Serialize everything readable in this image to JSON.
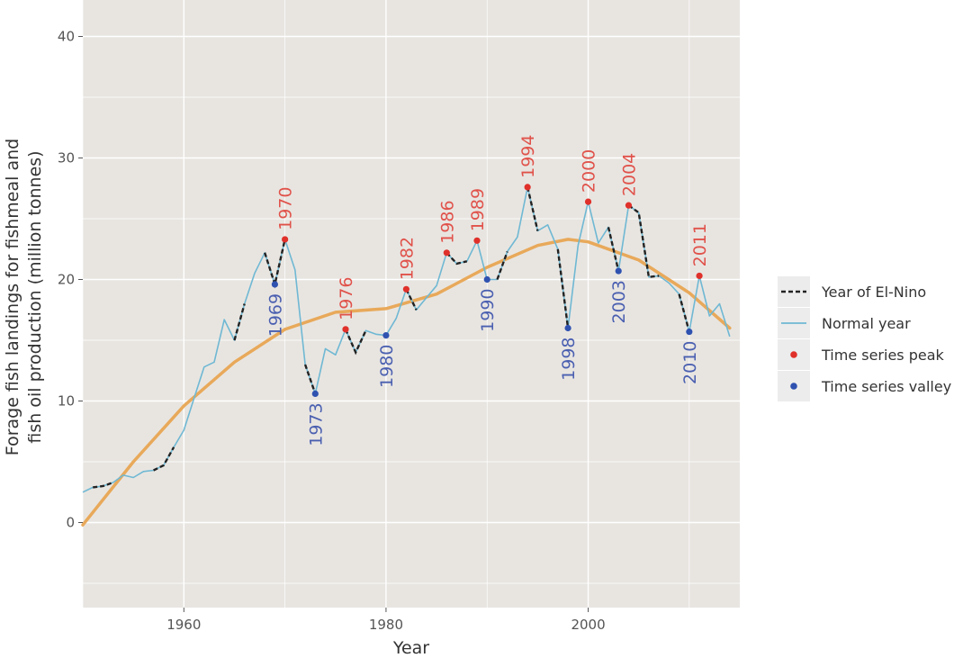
{
  "chart_data": {
    "type": "line",
    "xlabel": "Year",
    "ylabel_line1": "Forage fish landings for fishmeal and",
    "ylabel_line2": "fish oil production (million tonnes)",
    "xlim": [
      1950,
      2015
    ],
    "ylim": [
      -7,
      43
    ],
    "x_ticks": [
      1960,
      1980,
      2000
    ],
    "y_ticks": [
      0,
      10,
      20,
      30,
      40
    ],
    "grid": true,
    "legend_position": "right",
    "colors": {
      "panel": "#e8e5e1",
      "grid": "#ffffff",
      "normal": "#6fb8d3",
      "el_nino": "#222222",
      "trend": "#e8a95a",
      "peak": "#e0302a",
      "valley": "#2f52b0",
      "peak_label": "#e0524a",
      "valley_label": "#4a5fb0"
    },
    "series": [
      {
        "name": "Normal year",
        "values": [
          [
            1950,
            2.5
          ],
          [
            1951,
            2.9
          ],
          [
            1952,
            3.0
          ],
          [
            1953,
            3.3
          ],
          [
            1954,
            3.9
          ],
          [
            1955,
            3.7
          ],
          [
            1956,
            4.2
          ],
          [
            1957,
            4.3
          ],
          [
            1958,
            4.7
          ],
          [
            1959,
            6.2
          ],
          [
            1960,
            7.6
          ],
          [
            1961,
            10.2
          ],
          [
            1962,
            12.8
          ],
          [
            1963,
            13.2
          ],
          [
            1964,
            16.7
          ],
          [
            1965,
            15.0
          ],
          [
            1966,
            18.0
          ],
          [
            1967,
            20.5
          ],
          [
            1968,
            22.2
          ],
          [
            1969,
            19.6
          ],
          [
            1970,
            23.3
          ],
          [
            1971,
            20.8
          ],
          [
            1972,
            13.0
          ],
          [
            1973,
            10.6
          ],
          [
            1974,
            14.3
          ],
          [
            1975,
            13.8
          ],
          [
            1976,
            15.9
          ],
          [
            1977,
            14.0
          ],
          [
            1978,
            15.8
          ],
          [
            1979,
            15.5
          ],
          [
            1980,
            15.4
          ],
          [
            1981,
            16.8
          ],
          [
            1982,
            19.2
          ],
          [
            1983,
            17.5
          ],
          [
            1984,
            18.5
          ],
          [
            1985,
            19.5
          ],
          [
            1986,
            22.2
          ],
          [
            1987,
            21.3
          ],
          [
            1988,
            21.5
          ],
          [
            1989,
            23.2
          ],
          [
            1990,
            20.0
          ],
          [
            1991,
            20.0
          ],
          [
            1992,
            22.3
          ],
          [
            1993,
            23.5
          ],
          [
            1994,
            27.6
          ],
          [
            1995,
            24.0
          ],
          [
            1996,
            24.5
          ],
          [
            1997,
            22.5
          ],
          [
            1998,
            16.0
          ],
          [
            1999,
            22.8
          ],
          [
            2000,
            26.4
          ],
          [
            2001,
            23.0
          ],
          [
            2002,
            24.3
          ],
          [
            2003,
            20.7
          ],
          [
            2004,
            26.1
          ],
          [
            2005,
            25.5
          ],
          [
            2006,
            20.2
          ],
          [
            2007,
            20.3
          ],
          [
            2008,
            19.7
          ],
          [
            2009,
            18.8
          ],
          [
            2010,
            15.7
          ],
          [
            2011,
            20.3
          ],
          [
            2012,
            17.0
          ],
          [
            2013,
            18.0
          ],
          [
            2014,
            15.3
          ]
        ]
      },
      {
        "name": "Year of El-Nino",
        "segments": [
          [
            [
              1951,
              2.9
            ],
            [
              1952,
              3.0
            ],
            [
              1953,
              3.3
            ]
          ],
          [
            [
              1957,
              4.3
            ],
            [
              1958,
              4.7
            ],
            [
              1959,
              6.2
            ]
          ],
          [
            [
              1965,
              15.0
            ],
            [
              1966,
              18.0
            ]
          ],
          [
            [
              1968,
              22.2
            ],
            [
              1969,
              19.6
            ],
            [
              1970,
              23.3
            ]
          ],
          [
            [
              1972,
              13.0
            ],
            [
              1973,
              10.6
            ]
          ],
          [
            [
              1976,
              15.9
            ],
            [
              1977,
              14.0
            ],
            [
              1978,
              15.8
            ]
          ],
          [
            [
              1982,
              19.2
            ],
            [
              1983,
              17.5
            ]
          ],
          [
            [
              1986,
              22.2
            ],
            [
              1987,
              21.3
            ],
            [
              1988,
              21.5
            ]
          ],
          [
            [
              1991,
              20.0
            ],
            [
              1992,
              22.3
            ]
          ],
          [
            [
              1994,
              27.6
            ],
            [
              1995,
              24.0
            ]
          ],
          [
            [
              1997,
              22.5
            ],
            [
              1998,
              16.0
            ]
          ],
          [
            [
              2002,
              24.3
            ],
            [
              2003,
              20.7
            ]
          ],
          [
            [
              2004,
              26.1
            ],
            [
              2005,
              25.5
            ],
            [
              2006,
              20.2
            ],
            [
              2007,
              20.3
            ]
          ],
          [
            [
              2009,
              18.8
            ],
            [
              2010,
              15.7
            ]
          ]
        ]
      }
    ],
    "trend": {
      "values": [
        [
          1950,
          -0.2
        ],
        [
          1955,
          5.0
        ],
        [
          1960,
          9.6
        ],
        [
          1965,
          13.2
        ],
        [
          1970,
          15.9
        ],
        [
          1975,
          17.3
        ],
        [
          1980,
          17.6
        ],
        [
          1985,
          18.8
        ],
        [
          1990,
          21.0
        ],
        [
          1995,
          22.8
        ],
        [
          1998,
          23.3
        ],
        [
          2000,
          23.1
        ],
        [
          2005,
          21.6
        ],
        [
          2010,
          18.9
        ],
        [
          2014,
          16.0
        ]
      ]
    },
    "peaks": [
      {
        "x": 1970,
        "y": 23.3,
        "label": "1970"
      },
      {
        "x": 1976,
        "y": 15.9,
        "label": "1976"
      },
      {
        "x": 1982,
        "y": 19.2,
        "label": "1982"
      },
      {
        "x": 1986,
        "y": 22.2,
        "label": "1986"
      },
      {
        "x": 1989,
        "y": 23.2,
        "label": "1989"
      },
      {
        "x": 1994,
        "y": 27.6,
        "label": "1994"
      },
      {
        "x": 2000,
        "y": 26.4,
        "label": "2000"
      },
      {
        "x": 2004,
        "y": 26.1,
        "label": "2004"
      },
      {
        "x": 2011,
        "y": 20.3,
        "label": "2011"
      }
    ],
    "valleys": [
      {
        "x": 1969,
        "y": 19.6,
        "label": "1969"
      },
      {
        "x": 1973,
        "y": 10.6,
        "label": "1973"
      },
      {
        "x": 1980,
        "y": 15.4,
        "label": "1980"
      },
      {
        "x": 1990,
        "y": 20.0,
        "label": "1990"
      },
      {
        "x": 1998,
        "y": 16.0,
        "label": "1998"
      },
      {
        "x": 2003,
        "y": 20.7,
        "label": "2003"
      },
      {
        "x": 2010,
        "y": 15.7,
        "label": "2010"
      }
    ],
    "legend": [
      {
        "key": "el_nino",
        "label": "Year of El-Nino"
      },
      {
        "key": "normal",
        "label": "Normal year"
      },
      {
        "key": "peak",
        "label": "Time series peak"
      },
      {
        "key": "valley",
        "label": "Time series valley"
      }
    ]
  }
}
